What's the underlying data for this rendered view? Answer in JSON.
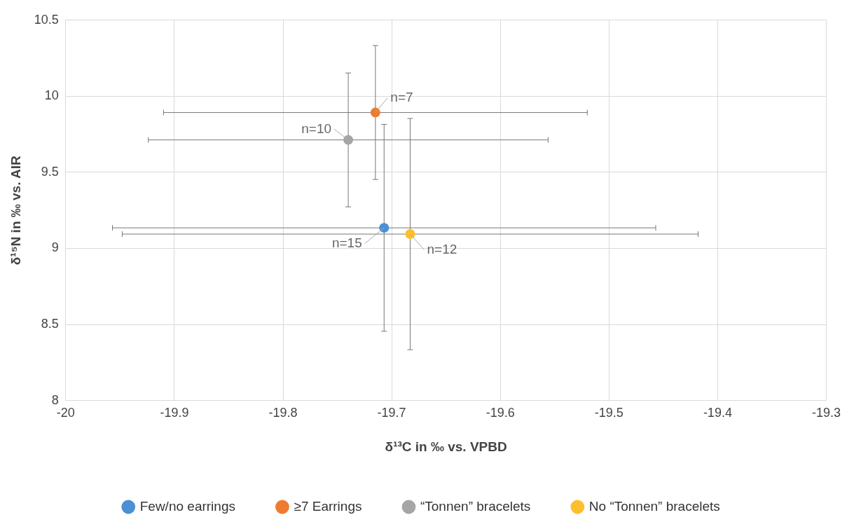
{
  "chart_data": {
    "type": "scatter",
    "xlabel": "δ¹³C in ‰ vs. VPBD",
    "ylabel": "δ¹⁵N in ‰ vs. AIR",
    "xlim": [
      -20,
      -19.3
    ],
    "xticks": [
      -20,
      -19.9,
      -19.8,
      -19.7,
      -19.6,
      -19.5,
      -19.4,
      -19.3
    ],
    "ylim": [
      8,
      10.5
    ],
    "yticks": [
      8,
      8.5,
      9,
      9.5,
      10,
      10.5
    ],
    "grid": true,
    "legend": "bottom",
    "marker": "circle",
    "series": [
      {
        "name": "Few/no earrings",
        "color": "#4a90d4",
        "x": [
          -19.707
        ],
        "values": [
          9.135
        ],
        "errors": [
          0.68
        ],
        "xerrors": [
          0.25
        ]
      },
      {
        "name": "≥7 Earrings",
        "color": "#ee7b30",
        "x": [
          -19.715
        ],
        "values": [
          9.893
        ],
        "errors": [
          0.44
        ],
        "xerrors": [
          0.195
        ]
      },
      {
        "name": "“Tonnen” bracelets",
        "color": "#a5a5a5",
        "x": [
          -19.74
        ],
        "values": [
          9.713
        ],
        "errors": [
          0.44
        ],
        "xerrors": [
          0.184
        ]
      },
      {
        "name": "No “Tonnen” bracelets",
        "color": "#fdbf2d",
        "x": [
          -19.683
        ],
        "values": [
          9.094
        ],
        "errors": [
          0.76
        ],
        "xerrors": [
          0.265
        ]
      }
    ],
    "annotations": [
      {
        "text": "n=7",
        "x": -19.715,
        "y": 9.893
      },
      {
        "text": "n=10",
        "x": -19.74,
        "y": 9.713
      },
      {
        "text": "n=15",
        "x": -19.707,
        "y": 9.135
      },
      {
        "text": "n=12",
        "x": -19.683,
        "y": 9.094
      }
    ]
  }
}
